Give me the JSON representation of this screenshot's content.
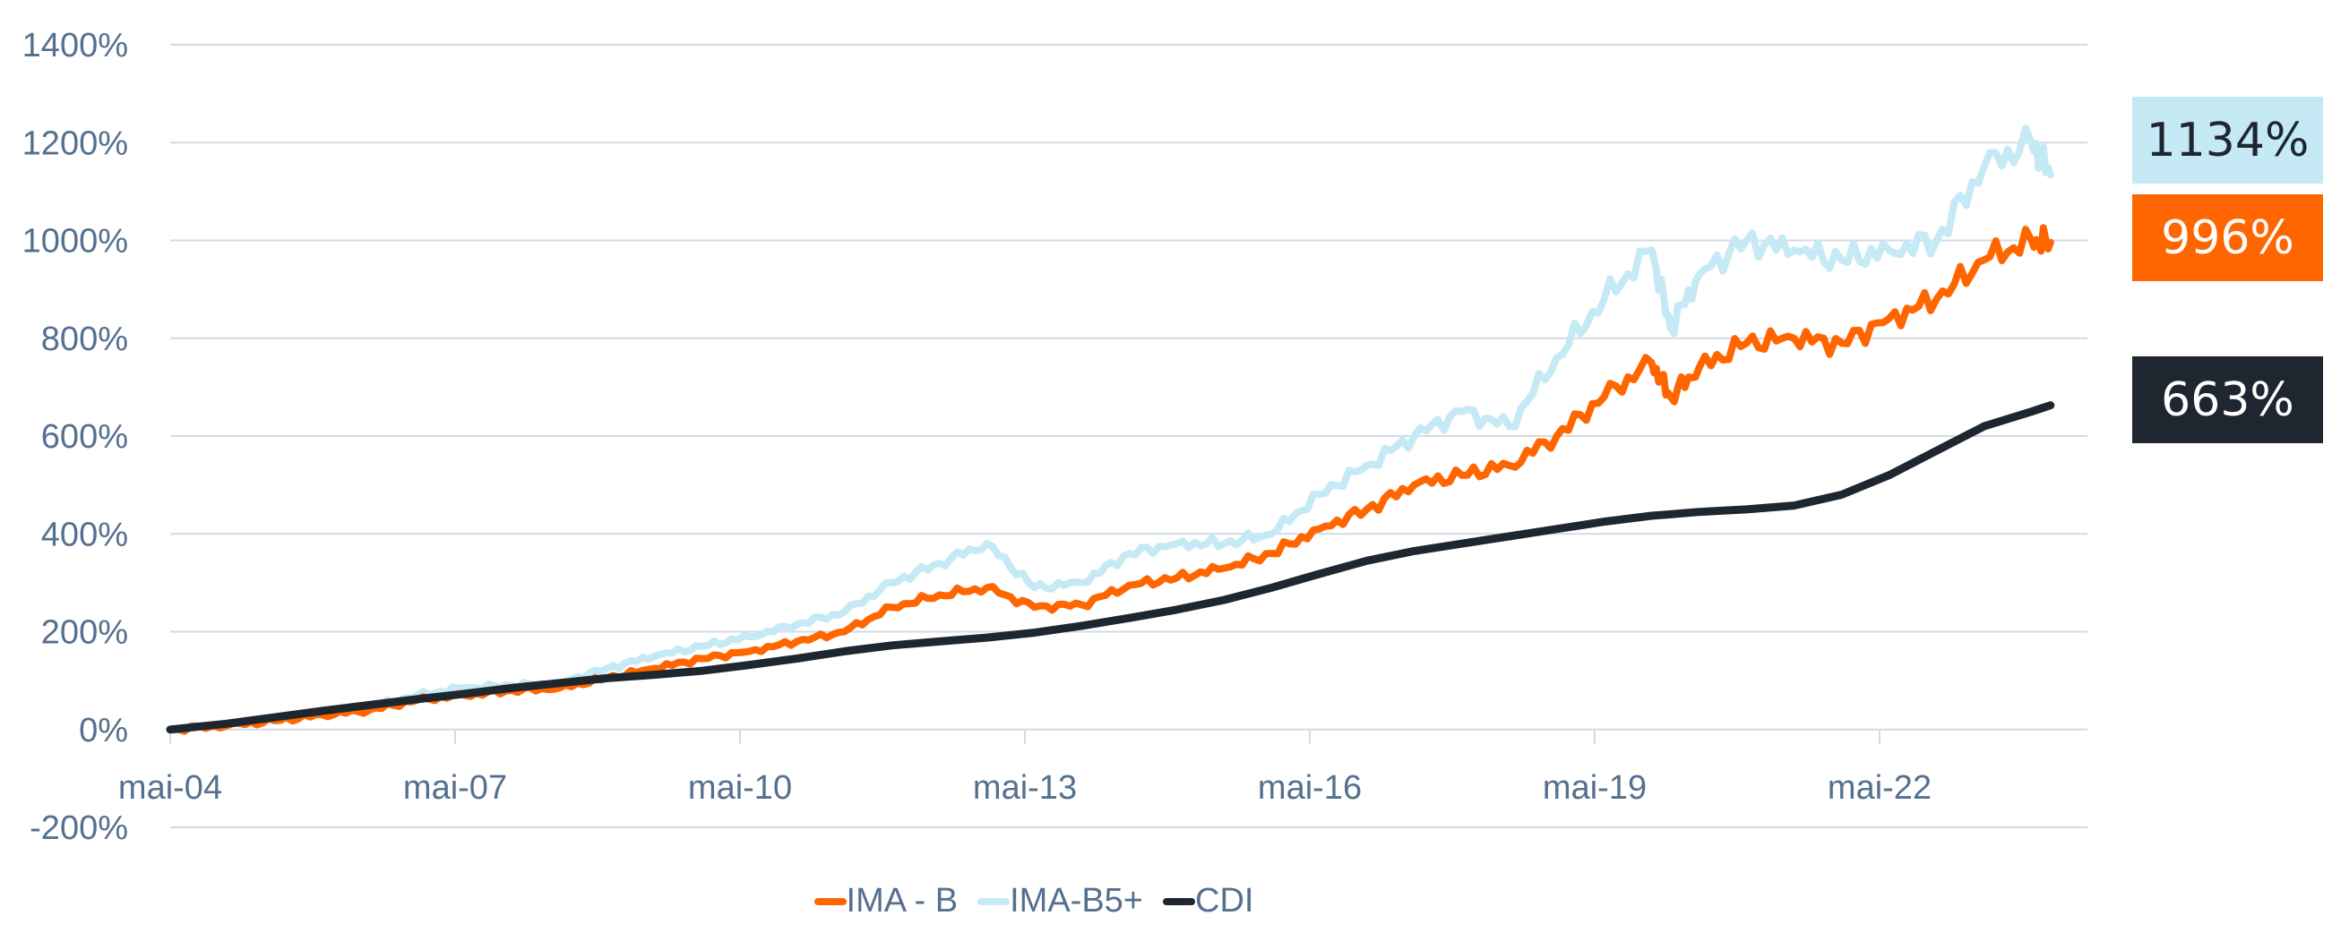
{
  "chart_data": {
    "type": "line",
    "title": "",
    "xlabel": "",
    "ylabel": "",
    "ylim": [
      -200,
      1400
    ],
    "yticks": [
      "1400%",
      "1200%",
      "1000%",
      "800%",
      "600%",
      "400%",
      "200%",
      "0%",
      "-200%"
    ],
    "xticks": [
      "mai-04",
      "mai-07",
      "mai-10",
      "mai-13",
      "mai-16",
      "mai-19",
      "mai-22"
    ],
    "grid": true,
    "legend_position": "bottom",
    "x": [
      2004.4,
      2005.0,
      2005.5,
      2006.0,
      2006.5,
      2007.0,
      2007.5,
      2008.0,
      2008.5,
      2009.0,
      2009.5,
      2010.0,
      2010.5,
      2011.0,
      2011.5,
      2012.0,
      2012.5,
      2013.0,
      2013.5,
      2014.0,
      2014.5,
      2015.0,
      2015.5,
      2016.0,
      2016.5,
      2017.0,
      2017.5,
      2018.0,
      2018.5,
      2019.0,
      2019.5,
      2020.0,
      2020.2,
      2020.5,
      2021.0,
      2021.5,
      2022.0,
      2022.5,
      2023.0,
      2023.5,
      2024.0,
      2024.2
    ],
    "series": [
      {
        "name": "IMA - B",
        "color": "#ff6600",
        "values": [
          0,
          8,
          18,
          30,
          40,
          60,
          70,
          80,
          85,
          105,
          125,
          145,
          160,
          180,
          200,
          250,
          275,
          290,
          250,
          255,
          295,
          310,
          330,
          360,
          410,
          450,
          500,
          520,
          540,
          600,
          680,
          750,
          680,
          740,
          790,
          800,
          790,
          840,
          880,
          960,
          1000,
          996
        ]
      },
      {
        "name": "IMA-B5+",
        "color": "#c5e9f5",
        "values": [
          0,
          10,
          20,
          35,
          45,
          70,
          85,
          90,
          95,
          125,
          150,
          170,
          190,
          215,
          240,
          300,
          340,
          380,
          290,
          300,
          360,
          380,
          380,
          400,
          480,
          540,
          600,
          650,
          620,
          760,
          880,
          980,
          820,
          930,
          1000,
          980,
          960,
          980,
          1000,
          1150,
          1200,
          1134
        ]
      },
      {
        "name": "CDI",
        "color": "#1e2630",
        "values": [
          0,
          12,
          25,
          38,
          50,
          62,
          73,
          85,
          95,
          105,
          112,
          120,
          132,
          145,
          160,
          172,
          180,
          188,
          198,
          212,
          228,
          245,
          265,
          290,
          318,
          345,
          365,
          380,
          395,
          410,
          425,
          437,
          440,
          445,
          450,
          458,
          480,
          520,
          570,
          620,
          650,
          663
        ]
      }
    ],
    "end_labels": [
      {
        "series": "IMA-B5+",
        "text": "1134%",
        "bg": "#c5e9f5",
        "fg": "#1e2630"
      },
      {
        "series": "IMA - B",
        "text": "996%",
        "bg": "#ff6600",
        "fg": "#ffffff"
      },
      {
        "series": "CDI",
        "text": "663%",
        "bg": "#1e2630",
        "fg": "#ffffff"
      }
    ]
  },
  "legend": {
    "items": [
      {
        "label": "IMA - B",
        "color": "#ff6600"
      },
      {
        "label": "IMA-B5+",
        "color": "#c5e9f5"
      },
      {
        "label": "CDI",
        "color": "#1e2630"
      }
    ]
  }
}
